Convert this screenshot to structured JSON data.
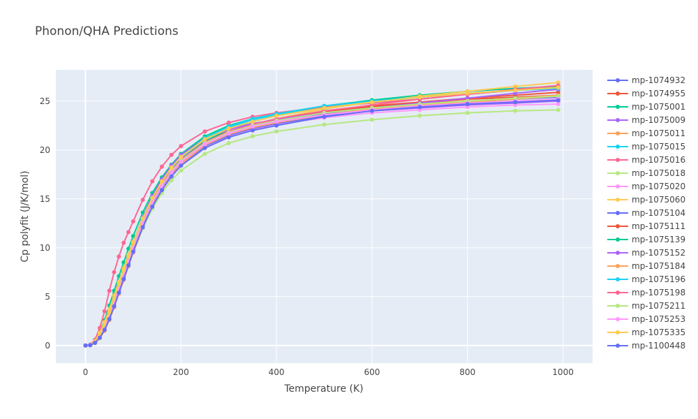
{
  "chart_data": {
    "type": "line",
    "title": "Phonon/QHA Predictions",
    "xlabel": "Temperature (K)",
    "ylabel": "Cp polyfit (J/K/mol)",
    "xlim": [
      -62,
      1062
    ],
    "ylim": [
      -1.8,
      28.2
    ],
    "x_ticks": [
      0,
      200,
      400,
      600,
      800,
      1000
    ],
    "y_ticks": [
      0,
      5,
      10,
      15,
      20,
      25
    ],
    "x_tick_labels": [
      "0",
      "200",
      "400",
      "600",
      "800",
      "1000"
    ],
    "y_tick_labels": [
      "0",
      "5",
      "10",
      "15",
      "20",
      "25"
    ],
    "grid": true,
    "legend_position": "right",
    "background_color": "#E5ECF6",
    "x": [
      0,
      10,
      20,
      30,
      40,
      50,
      60,
      70,
      80,
      90,
      100,
      120,
      140,
      160,
      180,
      200,
      250,
      300,
      350,
      400,
      500,
      600,
      700,
      800,
      900,
      990
    ],
    "series": [
      {
        "name": "mp-1074932",
        "color": "#636EFA",
        "values": [
          0,
          0.05,
          0.3,
          0.9,
          1.8,
          3.0,
          4.4,
          5.8,
          7.2,
          8.6,
          10.0,
          12.5,
          14.6,
          16.3,
          17.7,
          18.8,
          20.6,
          21.7,
          22.4,
          22.9,
          23.7,
          24.2,
          24.6,
          24.9,
          25.2,
          25.4
        ]
      },
      {
        "name": "mp-1074955",
        "color": "#EF553B",
        "values": [
          0,
          0.05,
          0.35,
          1.0,
          2.0,
          3.3,
          4.7,
          6.2,
          7.6,
          9.0,
          10.4,
          12.9,
          15.0,
          16.7,
          18.0,
          19.1,
          20.9,
          21.9,
          22.6,
          23.1,
          23.9,
          24.5,
          24.9,
          25.3,
          25.6,
          25.9
        ]
      },
      {
        "name": "mp-1075001",
        "color": "#00CC96",
        "values": [
          0,
          0.08,
          0.5,
          1.4,
          2.6,
          4.1,
          5.6,
          7.1,
          8.5,
          9.9,
          11.2,
          13.6,
          15.6,
          17.2,
          18.5,
          19.6,
          21.4,
          22.5,
          23.2,
          23.7,
          24.5,
          25.1,
          25.6,
          26.0,
          26.3,
          26.5
        ]
      },
      {
        "name": "mp-1075009",
        "color": "#AB63FA",
        "values": [
          0,
          0.05,
          0.3,
          0.9,
          1.8,
          3.1,
          4.5,
          6.0,
          7.5,
          8.9,
          10.3,
          12.8,
          14.9,
          16.6,
          18.0,
          19.1,
          20.8,
          21.8,
          22.4,
          22.8,
          23.5,
          24.0,
          24.3,
          24.6,
          24.8,
          25.0
        ]
      },
      {
        "name": "mp-1075011",
        "color": "#FFA15A",
        "values": [
          0,
          0.04,
          0.25,
          0.75,
          1.5,
          2.6,
          3.9,
          5.3,
          6.7,
          8.1,
          9.5,
          12.0,
          14.2,
          15.9,
          17.3,
          18.5,
          20.4,
          21.5,
          22.2,
          22.7,
          23.5,
          24.1,
          24.5,
          24.9,
          25.2,
          25.5
        ]
      },
      {
        "name": "mp-1075015",
        "color": "#19D3F3",
        "values": [
          0,
          0.05,
          0.35,
          1.0,
          2.0,
          3.3,
          4.7,
          6.2,
          7.6,
          9.0,
          10.4,
          12.9,
          15.0,
          16.7,
          18.1,
          19.2,
          21.1,
          22.3,
          23.1,
          23.6,
          24.4,
          24.9,
          25.4,
          25.8,
          26.1,
          26.3
        ]
      },
      {
        "name": "mp-1075016",
        "color": "#FF6692",
        "values": [
          0,
          0.1,
          0.6,
          1.8,
          3.5,
          5.6,
          7.5,
          9.1,
          10.5,
          11.6,
          12.7,
          14.9,
          16.8,
          18.3,
          19.5,
          20.4,
          21.9,
          22.8,
          23.4,
          23.8,
          24.4,
          24.8,
          25.2,
          25.7,
          26.1,
          26.4
        ]
      },
      {
        "name": "mp-1075018",
        "color": "#B6E880",
        "values": [
          0,
          0.06,
          0.4,
          1.1,
          2.1,
          3.3,
          4.6,
          5.9,
          7.2,
          8.5,
          9.7,
          12.0,
          14.0,
          15.6,
          16.9,
          17.9,
          19.6,
          20.7,
          21.4,
          21.9,
          22.6,
          23.1,
          23.5,
          23.8,
          24.0,
          24.1
        ]
      },
      {
        "name": "mp-1075020",
        "color": "#FF97FF",
        "values": [
          0,
          0.05,
          0.3,
          0.9,
          1.8,
          3.0,
          4.4,
          5.8,
          7.2,
          8.6,
          10.0,
          12.5,
          14.6,
          16.3,
          17.6,
          18.7,
          20.4,
          21.4,
          22.1,
          22.6,
          23.3,
          23.8,
          24.1,
          24.4,
          24.6,
          24.7
        ]
      },
      {
        "name": "mp-1075060",
        "color": "#FECB52",
        "values": [
          0,
          0.07,
          0.45,
          1.3,
          2.4,
          3.7,
          5.1,
          6.5,
          7.9,
          9.3,
          10.6,
          13.0,
          15.0,
          16.6,
          17.9,
          18.9,
          20.7,
          21.8,
          22.6,
          23.2,
          24.2,
          24.9,
          25.5,
          26.0,
          26.5,
          26.9
        ]
      },
      {
        "name": "mp-1075104",
        "color": "#636EFA",
        "values": [
          0,
          0.04,
          0.28,
          0.85,
          1.7,
          2.9,
          4.2,
          5.6,
          7.0,
          8.4,
          9.8,
          12.3,
          14.4,
          16.1,
          17.5,
          18.6,
          20.4,
          21.5,
          22.2,
          22.7,
          23.5,
          24.0,
          24.4,
          24.7,
          24.9,
          25.1
        ]
      },
      {
        "name": "mp-1075111",
        "color": "#EF553B",
        "values": [
          0,
          0.05,
          0.32,
          0.95,
          1.9,
          3.2,
          4.6,
          6.0,
          7.4,
          8.8,
          10.2,
          12.7,
          14.8,
          16.5,
          17.9,
          19.0,
          20.8,
          21.9,
          22.6,
          23.1,
          23.9,
          24.4,
          24.8,
          25.2,
          25.4,
          25.6
        ]
      },
      {
        "name": "mp-1075139",
        "color": "#00CC96",
        "values": [
          0,
          0.05,
          0.33,
          0.95,
          1.9,
          3.2,
          4.6,
          6.0,
          7.4,
          8.8,
          10.2,
          12.7,
          14.8,
          16.5,
          17.9,
          19.0,
          20.9,
          22.1,
          22.9,
          23.5,
          24.3,
          24.9,
          25.4,
          25.8,
          26.1,
          26.4
        ]
      },
      {
        "name": "mp-1075152",
        "color": "#AB63FA",
        "values": [
          0,
          0.05,
          0.3,
          0.9,
          1.8,
          3.1,
          4.6,
          6.1,
          7.6,
          9.0,
          10.5,
          13.1,
          15.3,
          17.0,
          18.4,
          19.5,
          21.2,
          22.1,
          22.7,
          23.1,
          23.8,
          24.3,
          24.8,
          25.3,
          25.8,
          26.2
        ]
      },
      {
        "name": "mp-1075184",
        "color": "#FFA15A",
        "values": [
          0,
          0.04,
          0.27,
          0.8,
          1.6,
          2.7,
          4.0,
          5.4,
          6.8,
          8.2,
          9.6,
          12.1,
          14.3,
          16.0,
          17.4,
          18.6,
          20.5,
          21.6,
          22.3,
          22.8,
          23.6,
          24.2,
          24.6,
          25.0,
          25.3,
          25.6
        ]
      },
      {
        "name": "mp-1075196",
        "color": "#19D3F3",
        "values": [
          0,
          0.05,
          0.34,
          1.0,
          2.0,
          3.3,
          4.7,
          6.2,
          7.6,
          9.0,
          10.4,
          12.9,
          15.0,
          16.8,
          18.2,
          19.3,
          21.2,
          22.4,
          23.2,
          23.7,
          24.5,
          25.0,
          25.4,
          25.8,
          26.1,
          26.3
        ]
      },
      {
        "name": "mp-1075198",
        "color": "#FF6692",
        "values": [
          0,
          0.05,
          0.32,
          0.95,
          1.9,
          3.2,
          4.6,
          6.0,
          7.4,
          8.8,
          10.2,
          12.7,
          14.8,
          16.5,
          17.9,
          19.0,
          20.8,
          21.9,
          22.6,
          23.2,
          24.0,
          24.6,
          25.2,
          25.7,
          26.2,
          26.6
        ]
      },
      {
        "name": "mp-1075211",
        "color": "#B6E880",
        "values": [
          0,
          0.05,
          0.33,
          0.95,
          1.9,
          3.1,
          4.5,
          5.9,
          7.3,
          8.7,
          10.1,
          12.6,
          14.7,
          16.4,
          17.8,
          18.9,
          20.7,
          21.8,
          22.5,
          23.0,
          23.8,
          24.3,
          24.7,
          25.0,
          25.3,
          25.5
        ]
      },
      {
        "name": "mp-1075253",
        "color": "#FF97FF",
        "values": [
          0,
          0.05,
          0.3,
          0.9,
          1.8,
          3.0,
          4.4,
          5.8,
          7.2,
          8.6,
          10.0,
          12.5,
          14.6,
          16.3,
          17.7,
          18.8,
          20.6,
          21.7,
          22.4,
          22.9,
          23.6,
          24.1,
          24.5,
          24.8,
          25.0,
          25.2
        ]
      },
      {
        "name": "mp-1075335",
        "color": "#FECB52",
        "values": [
          0,
          0.06,
          0.38,
          1.1,
          2.1,
          3.4,
          4.8,
          6.3,
          7.7,
          9.1,
          10.5,
          13.0,
          15.1,
          16.8,
          18.2,
          19.3,
          21.1,
          22.2,
          22.9,
          23.5,
          24.3,
          24.9,
          25.4,
          25.8,
          26.1,
          26.4
        ]
      },
      {
        "name": "mp-1100448",
        "color": "#636EFA",
        "values": [
          0,
          0.04,
          0.27,
          0.8,
          1.6,
          2.7,
          4.0,
          5.4,
          6.8,
          8.2,
          9.6,
          12.1,
          14.2,
          15.9,
          17.3,
          18.4,
          20.2,
          21.3,
          22.0,
          22.5,
          23.4,
          24.0,
          24.4,
          24.7,
          24.9,
          25.1
        ]
      }
    ]
  }
}
